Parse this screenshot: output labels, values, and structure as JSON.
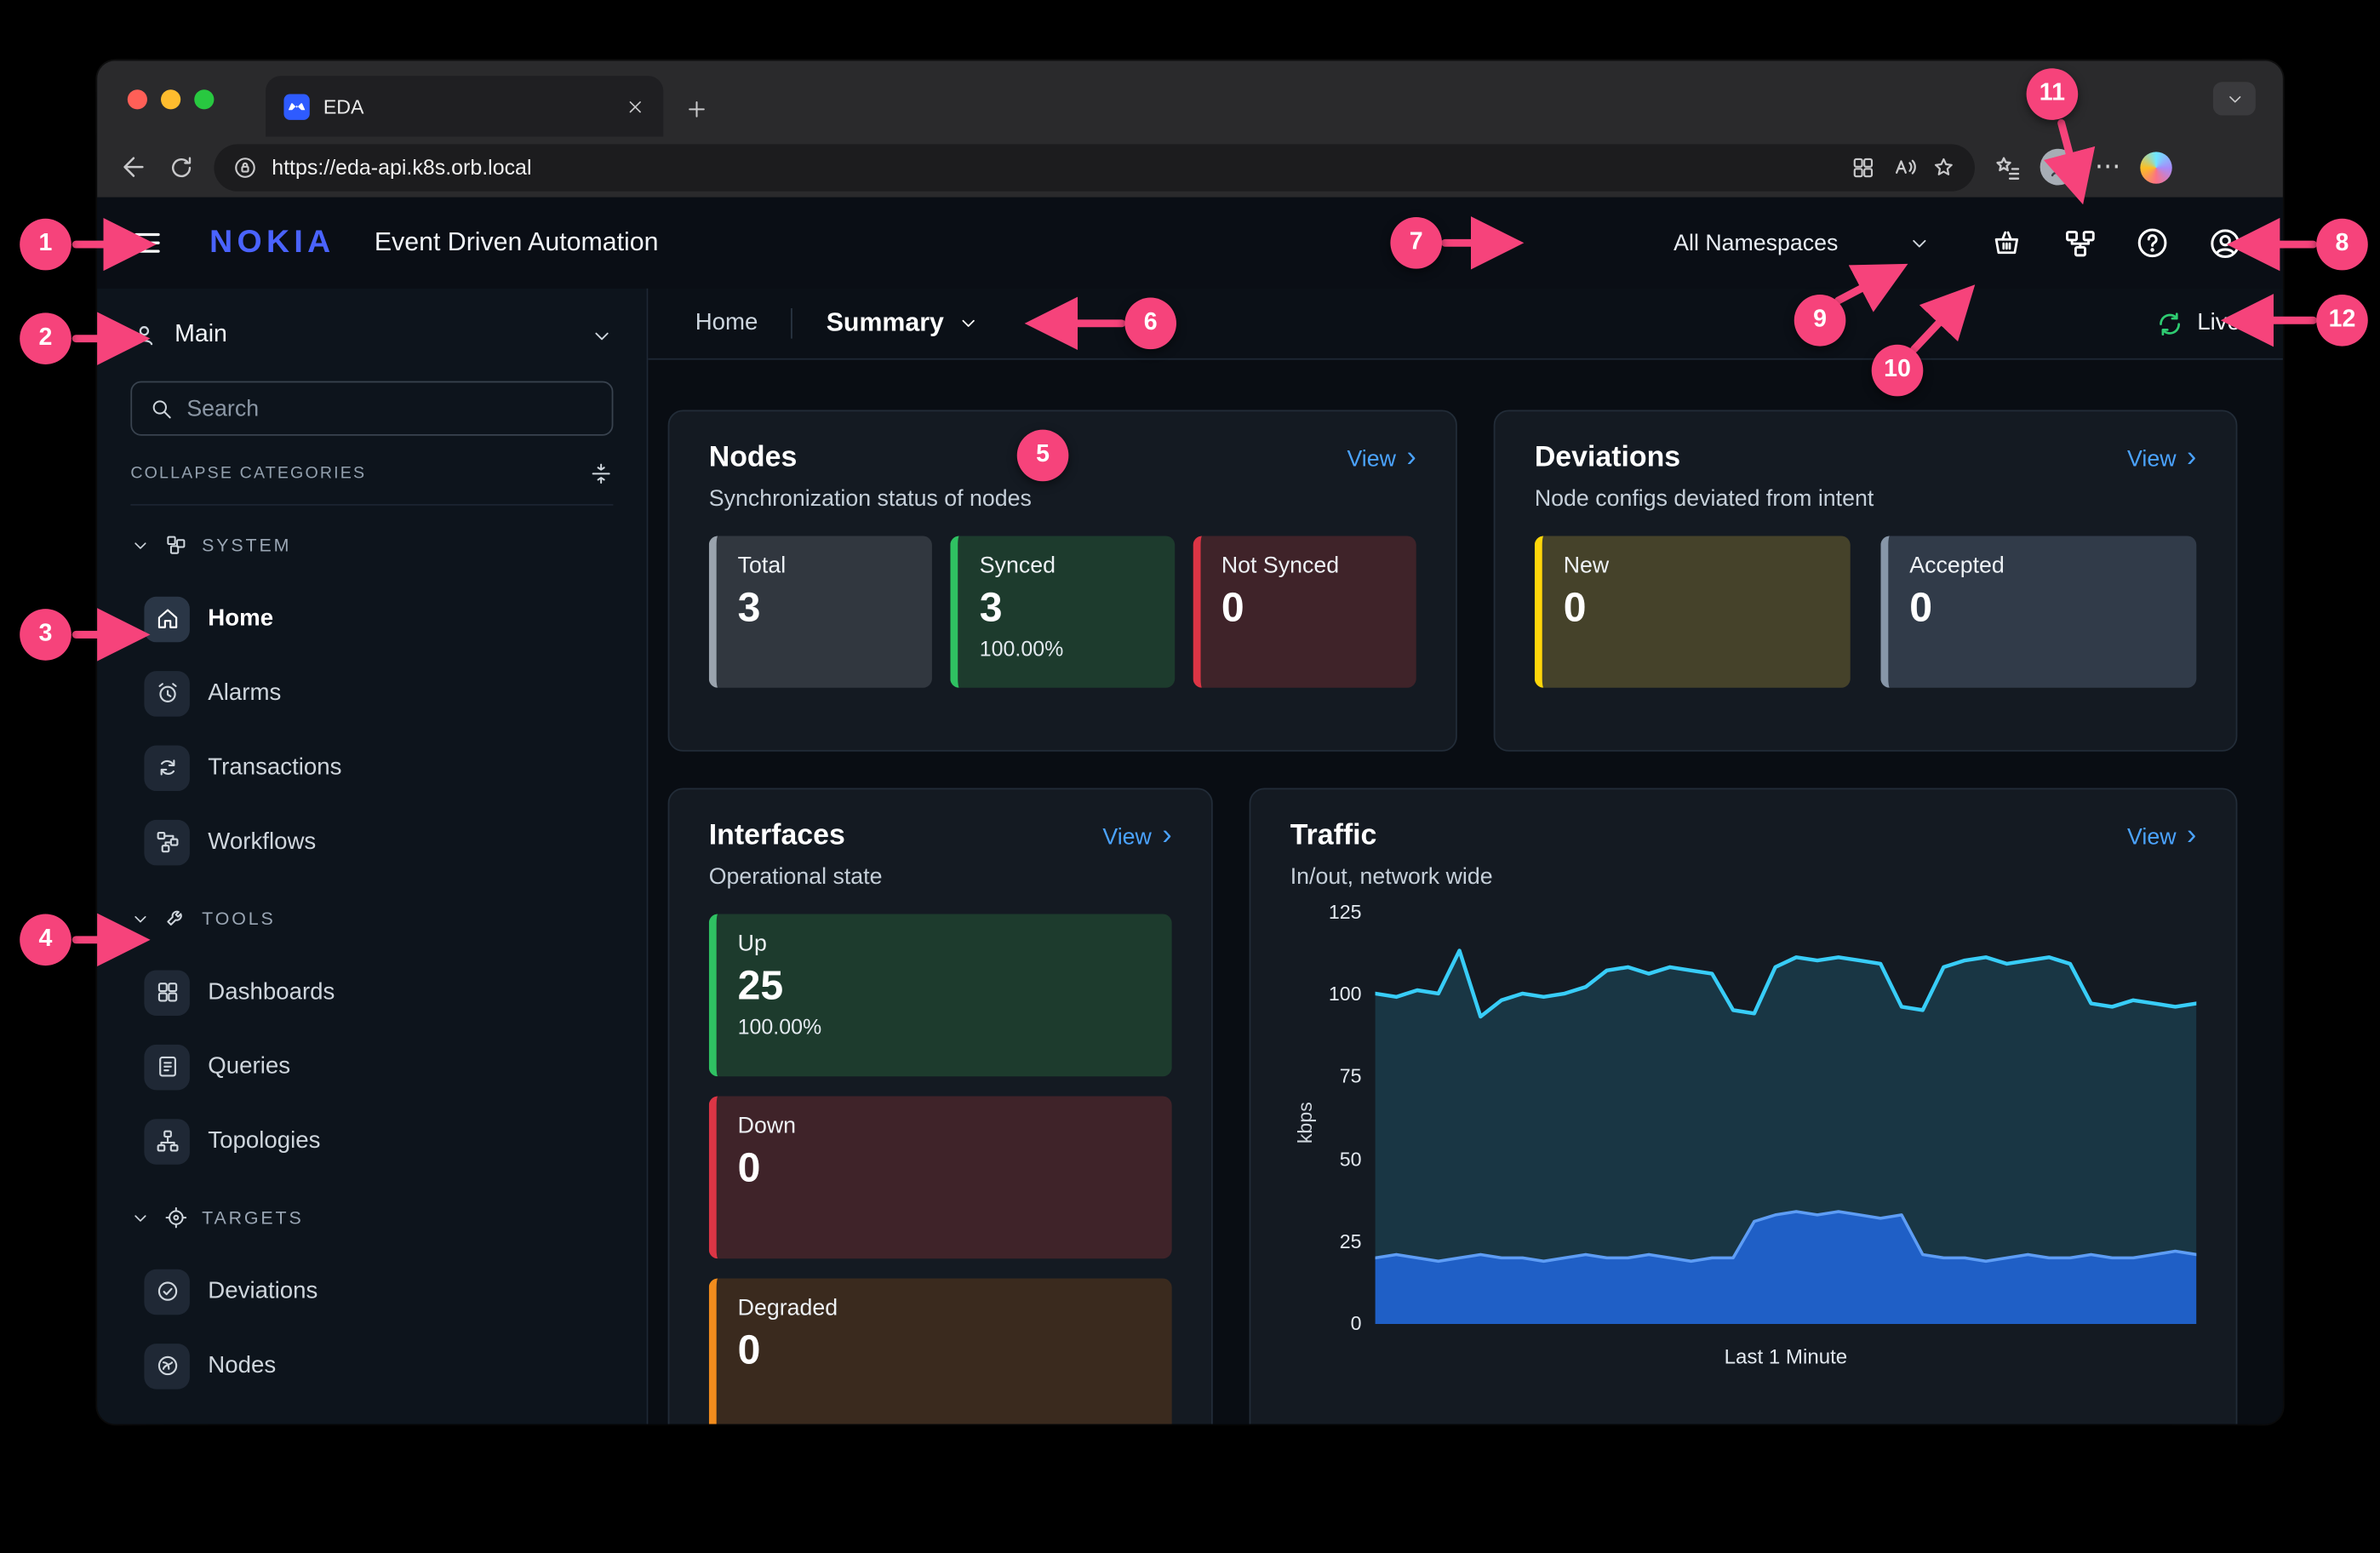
{
  "browser": {
    "tab_title": "EDA",
    "url": "https://eda-api.k8s.orb.local"
  },
  "header": {
    "logo": "NOKIA",
    "title": "Event Driven Automation",
    "namespace": "All Namespaces"
  },
  "breadcrumb": {
    "section": "Home",
    "view": "Summary",
    "live_label": "Live"
  },
  "sidebar": {
    "context_label": "Main",
    "search_placeholder": "Search",
    "collapse_label": "COLLAPSE CATEGORIES",
    "categories": [
      {
        "label": "SYSTEM",
        "items": [
          "Home",
          "Alarms",
          "Transactions",
          "Workflows"
        ]
      },
      {
        "label": "TOOLS",
        "items": [
          "Dashboards",
          "Queries",
          "Topologies"
        ]
      },
      {
        "label": "TARGETS",
        "items": [
          "Deviations",
          "Nodes"
        ]
      }
    ]
  },
  "cards": {
    "nodes": {
      "title": "Nodes",
      "subtitle": "Synchronization status of nodes",
      "view_label": "View",
      "tiles": [
        {
          "label": "Total",
          "value": "3",
          "accent": "#9aa3ad"
        },
        {
          "label": "Synced",
          "value": "3",
          "percent": "100.00%",
          "accent": "#2fc162"
        },
        {
          "label": "Not Synced",
          "value": "0",
          "accent": "#dc3545"
        }
      ]
    },
    "deviations": {
      "title": "Deviations",
      "subtitle": "Node configs deviated from intent",
      "view_label": "View",
      "tiles": [
        {
          "label": "New",
          "value": "0",
          "accent": "#ffd60a"
        },
        {
          "label": "Accepted",
          "value": "0",
          "accent": "#8796a8"
        }
      ]
    },
    "interfaces": {
      "title": "Interfaces",
      "subtitle": "Operational state",
      "view_label": "View",
      "tiles": [
        {
          "label": "Up",
          "value": "25",
          "percent": "100.00%",
          "accent": "#2fc162"
        },
        {
          "label": "Down",
          "value": "0",
          "accent": "#dc3545"
        },
        {
          "label": "Degraded",
          "value": "0",
          "accent": "#f28c1d"
        }
      ]
    },
    "traffic": {
      "title": "Traffic",
      "subtitle": "In/out, network wide",
      "view_label": "View"
    }
  },
  "chart_data": {
    "type": "area",
    "title": "Traffic",
    "xlabel": "Last 1 Minute",
    "ylabel": "kbps",
    "ylim": [
      0,
      125
    ],
    "yticks": [
      0,
      25,
      50,
      75,
      100,
      125
    ],
    "grid": false,
    "legend": "none",
    "series": [
      {
        "name": "out",
        "color": "#38cdf8",
        "fill": "rgba(56,205,248,0.16)",
        "values": [
          100,
          99,
          101,
          100,
          113,
          93,
          98,
          100,
          99,
          100,
          102,
          107,
          108,
          106,
          108,
          107,
          106,
          95,
          94,
          108,
          111,
          110,
          111,
          110,
          109,
          96,
          95,
          108,
          110,
          111,
          109,
          110,
          111,
          109,
          97,
          96,
          98,
          97,
          96,
          97
        ]
      },
      {
        "name": "in",
        "color": "#5e9df5",
        "fill": "#1f5fc6",
        "values": [
          20,
          21,
          20,
          19,
          20,
          21,
          20,
          20,
          19,
          20,
          21,
          20,
          20,
          21,
          20,
          19,
          20,
          20,
          31,
          33,
          34,
          33,
          34,
          33,
          32,
          33,
          21,
          20,
          20,
          19,
          20,
          21,
          20,
          20,
          21,
          20,
          20,
          21,
          22,
          21
        ]
      }
    ]
  },
  "annotations": [
    "1",
    "2",
    "3",
    "4",
    "5",
    "6",
    "7",
    "8",
    "9",
    "10",
    "11",
    "12"
  ],
  "icons": {
    "chevron_right": "›",
    "more": "⋯"
  },
  "colors": {
    "accent_link": "#4ba3ff",
    "brand_blue": "#4a63ff",
    "annotation_pink": "#f6437b",
    "live_green": "#2ecc71",
    "synced_green": "#2fc162",
    "error_red": "#dc3545",
    "new_yellow": "#ffd60a",
    "degraded_orange": "#f28c1d"
  }
}
